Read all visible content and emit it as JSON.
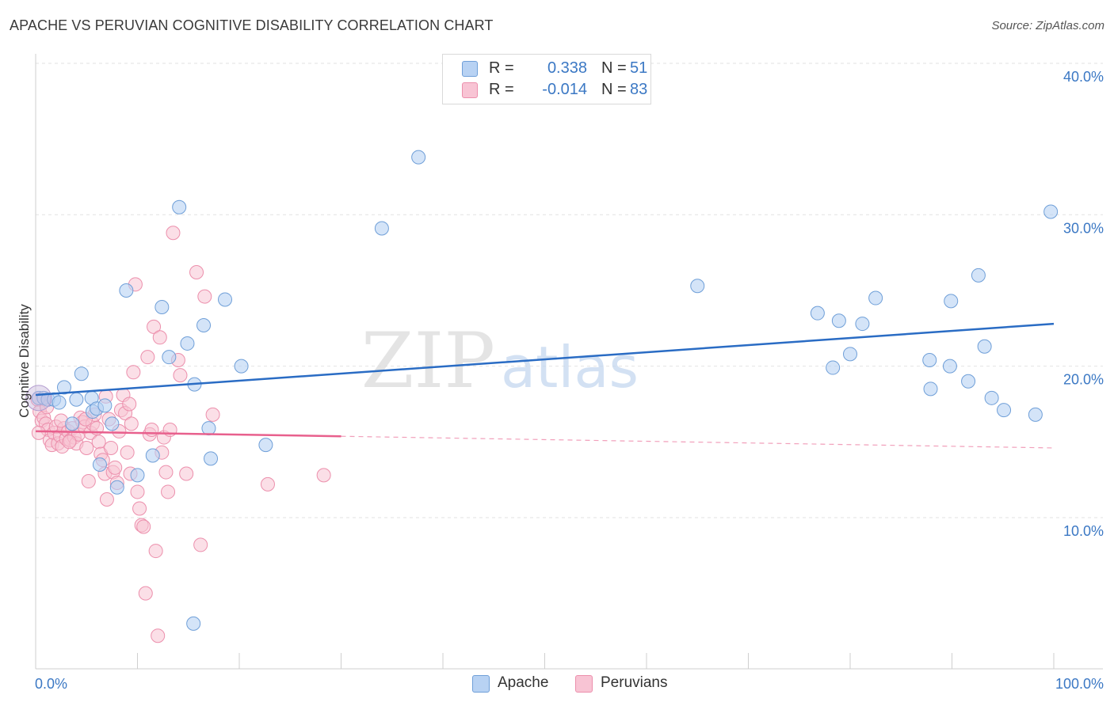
{
  "header": {
    "title": "APACHE VS PERUVIAN COGNITIVE DISABILITY CORRELATION CHART",
    "source": "Source: ZipAtlas.com"
  },
  "watermark": {
    "zip": "ZIP",
    "atlas": "atlas"
  },
  "legend": {
    "apache": {
      "r_label": "R =",
      "r_value": "0.338",
      "n_label": "N =",
      "n_value": "51"
    },
    "peruvians": {
      "r_label": "R =",
      "r_value": "-0.014",
      "n_label": "N =",
      "n_value": "83"
    }
  },
  "bottom_legend": {
    "apache": "Apache",
    "peruvians": "Peruvians"
  },
  "colors": {
    "apache_fill": "#b8d2f3",
    "apache_stroke": "#6f9fd8",
    "apache_line": "#2a6cc4",
    "peru_fill": "#f8c4d4",
    "peru_stroke": "#ec8fac",
    "peru_line": "#e8608d",
    "axis_text": "#3b78c4"
  },
  "chart_data": {
    "type": "scatter",
    "title": "APACHE VS PERUVIAN COGNITIVE DISABILITY CORRELATION CHART",
    "xlabel": "",
    "ylabel": "Cognitive Disability",
    "xlim": [
      0,
      100
    ],
    "ylim": [
      0,
      42
    ],
    "x_tick_labels": [
      "0.0%",
      "100.0%"
    ],
    "y_ticks": [
      10,
      20,
      30,
      40
    ],
    "y_tick_labels": [
      "10.0%",
      "20.0%",
      "30.0%",
      "40.0%"
    ],
    "grid": true,
    "legend_position": "top-center",
    "series": [
      {
        "name": "Apache",
        "r": 0.338,
        "n": 51,
        "trend": {
          "x": [
            0,
            100
          ],
          "y": [
            18.1,
            22.8
          ],
          "dashed_from": null
        },
        "points": [
          [
            0.3,
            17.9
          ],
          [
            0.8,
            17.9
          ],
          [
            1.2,
            17.8
          ],
          [
            1.8,
            17.8
          ],
          [
            2.8,
            18.6
          ],
          [
            4.0,
            17.8
          ],
          [
            4.5,
            19.5
          ],
          [
            5.5,
            17.9
          ],
          [
            5.6,
            17.0
          ],
          [
            6.0,
            17.2
          ],
          [
            6.3,
            13.5
          ],
          [
            6.8,
            17.4
          ],
          [
            7.5,
            16.2
          ],
          [
            8.0,
            12.0
          ],
          [
            8.9,
            25.0
          ],
          [
            10.0,
            12.8
          ],
          [
            11.5,
            14.1
          ],
          [
            12.4,
            23.9
          ],
          [
            13.1,
            20.6
          ],
          [
            14.1,
            30.5
          ],
          [
            14.9,
            21.5
          ],
          [
            15.6,
            18.8
          ],
          [
            16.5,
            22.7
          ],
          [
            17.0,
            15.9
          ],
          [
            17.2,
            13.9
          ],
          [
            18.6,
            24.4
          ],
          [
            20.2,
            20.0
          ],
          [
            22.6,
            14.8
          ],
          [
            15.5,
            3.0
          ],
          [
            34.0,
            29.1
          ],
          [
            37.6,
            33.8
          ],
          [
            65.0,
            25.3
          ],
          [
            76.8,
            23.5
          ],
          [
            78.3,
            19.9
          ],
          [
            78.9,
            23.0
          ],
          [
            80.0,
            20.8
          ],
          [
            81.2,
            22.8
          ],
          [
            82.5,
            24.5
          ],
          [
            87.8,
            20.4
          ],
          [
            87.9,
            18.5
          ],
          [
            89.8,
            20.0
          ],
          [
            89.9,
            24.3
          ],
          [
            91.6,
            19.0
          ],
          [
            92.6,
            26.0
          ],
          [
            93.2,
            21.3
          ],
          [
            93.9,
            17.9
          ],
          [
            95.1,
            17.1
          ],
          [
            99.7,
            30.2
          ],
          [
            98.2,
            16.8
          ],
          [
            3.6,
            16.2
          ],
          [
            2.3,
            17.6
          ]
        ]
      },
      {
        "name": "Peruvians",
        "r": -0.014,
        "n": 83,
        "trend": {
          "x": [
            0,
            100
          ],
          "y": [
            15.7,
            14.6
          ],
          "dashed_from": 30
        },
        "points": [
          [
            0.2,
            17.8
          ],
          [
            0.4,
            17.0
          ],
          [
            0.6,
            16.4
          ],
          [
            0.8,
            16.6
          ],
          [
            1.0,
            16.2
          ],
          [
            1.2,
            15.8
          ],
          [
            1.4,
            15.1
          ],
          [
            1.6,
            14.8
          ],
          [
            1.8,
            15.6
          ],
          [
            2.0,
            16.0
          ],
          [
            2.2,
            14.9
          ],
          [
            2.4,
            15.4
          ],
          [
            2.6,
            14.7
          ],
          [
            2.8,
            15.9
          ],
          [
            3.0,
            15.2
          ],
          [
            3.2,
            15.7
          ],
          [
            3.4,
            15.1
          ],
          [
            3.6,
            15.9
          ],
          [
            3.8,
            15.3
          ],
          [
            4.0,
            14.9
          ],
          [
            4.2,
            15.5
          ],
          [
            4.4,
            16.6
          ],
          [
            4.6,
            16.3
          ],
          [
            4.8,
            16.0
          ],
          [
            5.0,
            14.6
          ],
          [
            5.2,
            12.4
          ],
          [
            5.4,
            15.6
          ],
          [
            5.6,
            16.2
          ],
          [
            5.8,
            16.8
          ],
          [
            6.0,
            15.9
          ],
          [
            6.2,
            15.0
          ],
          [
            6.4,
            14.2
          ],
          [
            6.6,
            13.8
          ],
          [
            6.8,
            12.9
          ],
          [
            7.0,
            11.2
          ],
          [
            7.2,
            16.5
          ],
          [
            7.4,
            14.6
          ],
          [
            7.6,
            13.0
          ],
          [
            7.8,
            13.3
          ],
          [
            8.0,
            12.3
          ],
          [
            8.2,
            15.7
          ],
          [
            8.4,
            17.1
          ],
          [
            8.6,
            18.1
          ],
          [
            8.8,
            16.9
          ],
          [
            9.0,
            14.3
          ],
          [
            9.2,
            17.5
          ],
          [
            9.4,
            16.2
          ],
          [
            9.6,
            19.6
          ],
          [
            9.8,
            25.4
          ],
          [
            10.0,
            11.7
          ],
          [
            10.2,
            10.6
          ],
          [
            10.4,
            9.5
          ],
          [
            10.6,
            9.4
          ],
          [
            10.8,
            5.0
          ],
          [
            11.0,
            20.6
          ],
          [
            11.2,
            15.5
          ],
          [
            11.4,
            15.8
          ],
          [
            11.6,
            22.6
          ],
          [
            11.8,
            7.8
          ],
          [
            12.0,
            2.2
          ],
          [
            12.2,
            21.9
          ],
          [
            12.4,
            14.3
          ],
          [
            12.6,
            15.3
          ],
          [
            12.8,
            13.0
          ],
          [
            13.0,
            11.7
          ],
          [
            13.2,
            15.8
          ],
          [
            13.5,
            28.8
          ],
          [
            14.0,
            20.4
          ],
          [
            14.2,
            19.4
          ],
          [
            14.8,
            12.9
          ],
          [
            15.8,
            26.2
          ],
          [
            16.2,
            8.2
          ],
          [
            16.6,
            24.6
          ],
          [
            17.4,
            16.8
          ],
          [
            22.8,
            12.2
          ],
          [
            28.3,
            12.8
          ],
          [
            0.3,
            15.6
          ],
          [
            1.1,
            17.3
          ],
          [
            2.5,
            16.4
          ],
          [
            3.3,
            15.0
          ],
          [
            4.9,
            16.5
          ],
          [
            6.9,
            18.0
          ],
          [
            9.3,
            12.9
          ]
        ]
      }
    ]
  }
}
